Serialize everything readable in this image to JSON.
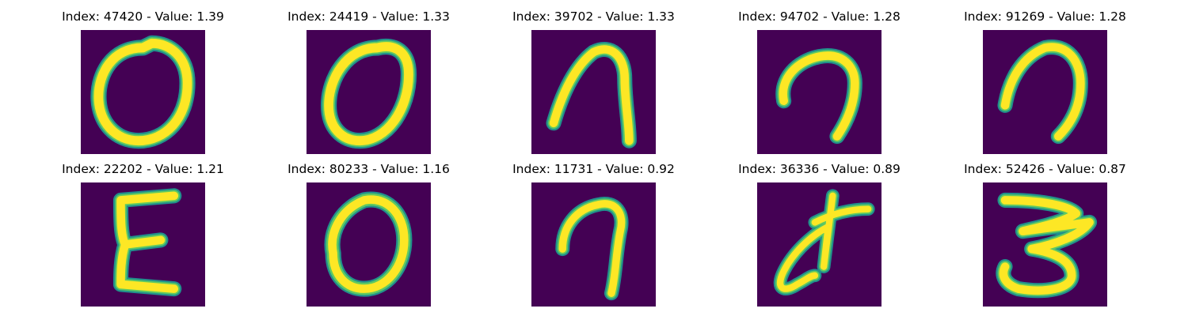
{
  "figure": {
    "panels": [
      {
        "index": "47420",
        "value": "1.39",
        "title": "Index: 47420 - Value: 1.39",
        "glyph": "handwritten-zero"
      },
      {
        "index": "24419",
        "value": "1.33",
        "title": "Index: 24419 - Value: 1.33",
        "glyph": "handwritten-zero"
      },
      {
        "index": "39702",
        "value": "1.33",
        "title": "Index: 39702 - Value: 1.33",
        "glyph": "handwritten-arch"
      },
      {
        "index": "94702",
        "value": "1.28",
        "title": "Index: 94702 - Value: 1.28",
        "glyph": "handwritten-hook"
      },
      {
        "index": "91269",
        "value": "1.28",
        "title": "Index: 91269 - Value: 1.28",
        "glyph": "handwritten-arch"
      },
      {
        "index": "22202",
        "value": "1.21",
        "title": "Index: 22202 - Value: 1.21",
        "glyph": "handwritten-sigma"
      },
      {
        "index": "80233",
        "value": "1.16",
        "title": "Index: 80233 - Value: 1.16",
        "glyph": "handwritten-zero"
      },
      {
        "index": "11731",
        "value": "0.92",
        "title": "Index: 11731 - Value: 0.92",
        "glyph": "handwritten-hook"
      },
      {
        "index": "36336",
        "value": "0.89",
        "title": "Index: 36336 - Value: 0.89",
        "glyph": "handwritten-scribble"
      },
      {
        "index": "52426",
        "value": "0.87",
        "title": "Index: 52426 - Value: 0.87",
        "glyph": "handwritten-three"
      }
    ],
    "colors": {
      "background": "#440154",
      "stroke_outer": "#21918c",
      "stroke_mid": "#5ec962",
      "stroke_core": "#fde725"
    }
  }
}
